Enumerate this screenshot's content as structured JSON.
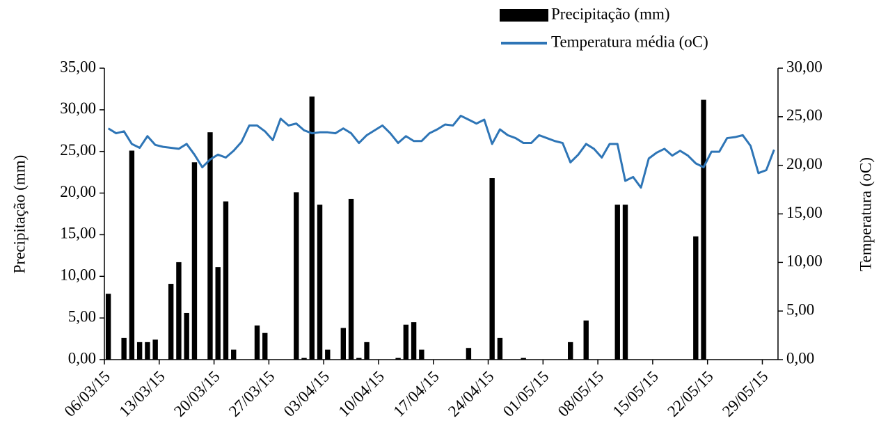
{
  "chart_data": {
    "type": "bar-line",
    "y_label": "Precipitação (mm)",
    "y2_label": "Temperatura (oC)",
    "categories": [
      "06/03",
      null,
      null,
      null,
      null,
      null,
      null,
      "13/03",
      null,
      null,
      null,
      null,
      null,
      null,
      "20/03",
      null,
      null,
      null,
      null,
      null,
      null,
      "27/03",
      null,
      null,
      null,
      null,
      null,
      null,
      "03/04",
      null,
      null,
      null,
      null,
      null,
      null,
      "10/04",
      null,
      null,
      null,
      null,
      null,
      null,
      "17/04",
      null,
      null,
      null,
      null,
      null,
      null,
      "24/04",
      null,
      null,
      null,
      null,
      null,
      null,
      "01/05",
      null,
      null,
      null,
      null,
      null,
      null,
      "08/05",
      null,
      null,
      null,
      null,
      null,
      null,
      "15/05",
      null,
      null,
      null,
      null,
      null,
      null,
      "22/05",
      null,
      null,
      null,
      null,
      null,
      null,
      "29/05",
      null
    ],
    "x_tick_suffix": "15",
    "series": [
      {
        "name": "Precipitação (mm)",
        "type": "bar",
        "color": "#000000",
        "values": [
          7.9,
          0,
          2.6,
          25.1,
          2.1,
          2.1,
          2.4,
          0,
          9.1,
          11.7,
          5.6,
          23.7,
          0,
          27.3,
          11.1,
          19.0,
          1.2,
          0,
          0,
          4.1,
          3.2,
          0,
          0,
          0,
          20.1,
          0.2,
          31.6,
          18.6,
          1.2,
          0,
          3.8,
          19.3,
          0.2,
          2.1,
          0,
          0,
          0,
          0.2,
          4.2,
          4.5,
          1.2,
          0,
          0,
          0,
          0,
          0,
          1.4,
          0,
          0,
          21.8,
          2.6,
          0,
          0,
          0.2,
          0,
          0,
          0,
          0,
          0,
          2.1,
          0,
          4.7,
          0,
          0,
          0,
          18.6,
          18.6,
          0,
          0,
          0,
          0,
          0,
          0,
          0,
          0,
          14.8,
          31.2,
          0,
          0,
          0,
          0,
          0,
          0,
          0,
          0,
          0
        ]
      },
      {
        "name": "Temperatura média (oC)",
        "type": "line",
        "axis": "y2",
        "color": "#2e75b6",
        "values": [
          23.8,
          23.3,
          23.5,
          22.2,
          21.8,
          23.0,
          22.1,
          21.9,
          21.8,
          21.7,
          22.2,
          21.1,
          19.8,
          20.6,
          21.1,
          20.8,
          21.5,
          22.4,
          24.1,
          24.1,
          23.5,
          22.6,
          24.8,
          24.1,
          24.3,
          23.6,
          23.3,
          23.4,
          23.4,
          23.3,
          23.8,
          23.3,
          22.3,
          23.1,
          23.6,
          24.1,
          23.3,
          22.3,
          23.0,
          22.5,
          22.5,
          23.3,
          23.7,
          24.2,
          24.1,
          25.1,
          24.7,
          24.3,
          24.7,
          22.2,
          23.7,
          23.1,
          22.8,
          22.3,
          22.3,
          23.1,
          22.8,
          22.5,
          22.3,
          20.3,
          21.1,
          22.2,
          21.7,
          20.8,
          22.2,
          22.2,
          18.4,
          18.8,
          17.7,
          20.7,
          21.3,
          21.7,
          21.0,
          21.5,
          21.0,
          20.2,
          19.8,
          21.4,
          21.4,
          22.8,
          22.9,
          23.1,
          22.0,
          19.2,
          19.5,
          21.6
        ]
      }
    ],
    "ylim": [
      0,
      35
    ],
    "yticks": [
      {
        "value": 0,
        "label": "0,00"
      },
      {
        "value": 5,
        "label": "5,00"
      },
      {
        "value": 10,
        "label": "10,00"
      },
      {
        "value": 15,
        "label": "15,00"
      },
      {
        "value": 20,
        "label": "20,00"
      },
      {
        "value": 25,
        "label": "25,00"
      },
      {
        "value": 30,
        "label": "30,00"
      },
      {
        "value": 35,
        "label": "35,00"
      }
    ],
    "y2lim": [
      0,
      30
    ],
    "y2ticks": [
      {
        "value": 0,
        "label": "0,00"
      },
      {
        "value": 5,
        "label": "5,00"
      },
      {
        "value": 10,
        "label": "10,00"
      },
      {
        "value": 15,
        "label": "15,00"
      },
      {
        "value": 20,
        "label": "20,00"
      },
      {
        "value": 25,
        "label": "25,00"
      },
      {
        "value": 30,
        "label": "30,00"
      }
    ],
    "legend": "top-right"
  }
}
